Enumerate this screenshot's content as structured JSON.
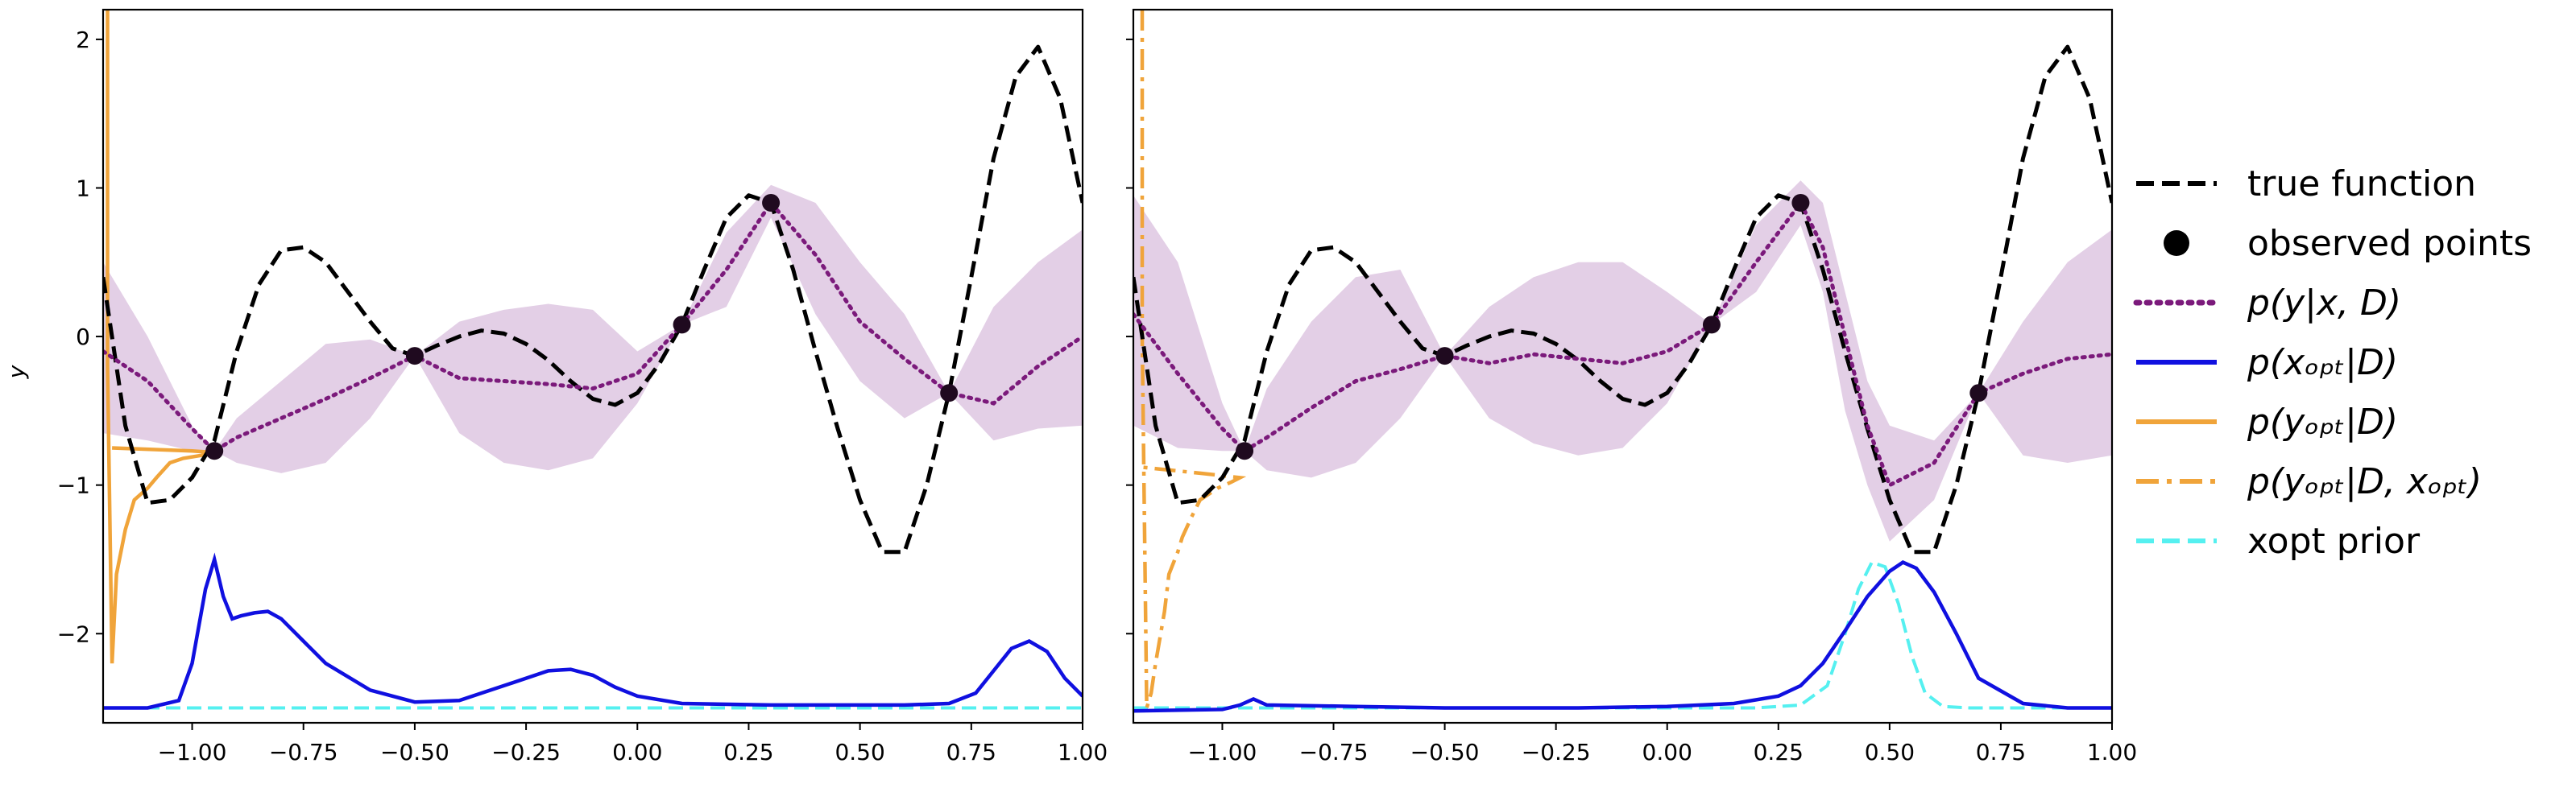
{
  "figure": {
    "ylabel": "y",
    "xticks": [
      "−1.00",
      "−0.75",
      "−0.50",
      "−0.25",
      "0.00",
      "0.25",
      "0.50",
      "0.75",
      "1.00"
    ],
    "yticks": [
      "−2",
      "−1",
      "0",
      "1",
      "2"
    ]
  },
  "legend": {
    "items": [
      {
        "label": "true function",
        "style": "black-dashed"
      },
      {
        "label": "observed points",
        "style": "black-dot"
      },
      {
        "label": "p(y|x, D)",
        "style": "purple-dotted"
      },
      {
        "label": "p(x_opt|D)",
        "style": "blue-solid"
      },
      {
        "label": "p(y_opt|D)",
        "style": "orange-solid"
      },
      {
        "label": "p(y_opt|D, x_opt)",
        "style": "orange-dashdot"
      },
      {
        "label": "xopt prior",
        "style": "cyan-dashed"
      }
    ]
  },
  "colors": {
    "true_function": "#000000",
    "observed": "#1f0a1f",
    "posterior_mean": "#7b1a7b",
    "posterior_band": "#d9bfdd",
    "x_opt": "#1010e0",
    "y_opt": "#f0a43a",
    "xopt_prior": "#55f0f0"
  },
  "chart_data": [
    {
      "type": "line",
      "panel": "left",
      "xlim": [
        -1.2,
        1.0
      ],
      "ylim": [
        -2.6,
        2.2
      ],
      "grid": false,
      "observed_points": {
        "x": [
          -0.95,
          -0.5,
          0.1,
          0.3,
          0.7
        ],
        "y": [
          -0.77,
          -0.13,
          0.08,
          0.9,
          -0.38
        ]
      },
      "true_function": {
        "x": [
          -1.2,
          -1.15,
          -1.1,
          -1.05,
          -1.0,
          -0.95,
          -0.9,
          -0.85,
          -0.8,
          -0.75,
          -0.7,
          -0.65,
          -0.6,
          -0.55,
          -0.5,
          -0.45,
          -0.4,
          -0.35,
          -0.3,
          -0.25,
          -0.2,
          -0.15,
          -0.1,
          -0.05,
          0.0,
          0.05,
          0.1,
          0.15,
          0.2,
          0.25,
          0.3,
          0.35,
          0.4,
          0.45,
          0.5,
          0.55,
          0.6,
          0.65,
          0.7,
          0.75,
          0.8,
          0.85,
          0.9,
          0.95,
          1.0
        ],
        "y": [
          0.4,
          -0.6,
          -1.12,
          -1.1,
          -0.95,
          -0.7,
          -0.1,
          0.35,
          0.58,
          0.6,
          0.5,
          0.3,
          0.1,
          -0.08,
          -0.13,
          -0.06,
          0.0,
          0.04,
          0.02,
          -0.05,
          -0.16,
          -0.3,
          -0.42,
          -0.46,
          -0.38,
          -0.18,
          0.08,
          0.45,
          0.8,
          0.95,
          0.9,
          0.45,
          -0.1,
          -0.62,
          -1.1,
          -1.45,
          -1.45,
          -1.0,
          -0.38,
          0.4,
          1.2,
          1.75,
          1.95,
          1.6,
          0.9
        ]
      },
      "posterior_mean": {
        "x": [
          -1.2,
          -1.1,
          -1.0,
          -0.95,
          -0.9,
          -0.8,
          -0.7,
          -0.6,
          -0.5,
          -0.4,
          -0.3,
          -0.2,
          -0.1,
          0.0,
          0.1,
          0.2,
          0.3,
          0.4,
          0.5,
          0.6,
          0.7,
          0.8,
          0.9,
          1.0
        ],
        "y": [
          -0.1,
          -0.3,
          -0.62,
          -0.77,
          -0.68,
          -0.55,
          -0.42,
          -0.28,
          -0.13,
          -0.28,
          -0.3,
          -0.32,
          -0.35,
          -0.25,
          0.08,
          0.45,
          0.9,
          0.55,
          0.1,
          -0.15,
          -0.38,
          -0.45,
          -0.2,
          0.0
        ]
      },
      "posterior_upper": [
        0.5,
        0.0,
        -0.6,
        -0.77,
        -0.55,
        -0.3,
        -0.05,
        -0.02,
        -0.13,
        0.1,
        0.18,
        0.22,
        0.18,
        -0.1,
        0.08,
        0.7,
        1.02,
        0.9,
        0.5,
        0.15,
        -0.38,
        0.2,
        0.5,
        0.72
      ],
      "posterior_lower": [
        -0.65,
        -0.7,
        -0.77,
        -0.77,
        -0.85,
        -0.92,
        -0.85,
        -0.55,
        -0.13,
        -0.65,
        -0.85,
        -0.9,
        -0.82,
        -0.45,
        0.08,
        0.2,
        0.8,
        0.15,
        -0.3,
        -0.55,
        -0.38,
        -0.7,
        -0.62,
        -0.6
      ],
      "x_opt_density": {
        "x": [
          -1.2,
          -1.1,
          -1.03,
          -1.0,
          -0.97,
          -0.95,
          -0.93,
          -0.91,
          -0.89,
          -0.86,
          -0.83,
          -0.8,
          -0.75,
          -0.7,
          -0.6,
          -0.5,
          -0.4,
          -0.3,
          -0.2,
          -0.15,
          -0.1,
          -0.05,
          0.0,
          0.1,
          0.3,
          0.5,
          0.6,
          0.7,
          0.76,
          0.8,
          0.84,
          0.88,
          0.92,
          0.96,
          1.0
        ],
        "y": [
          -2.5,
          -2.5,
          -2.45,
          -2.2,
          -1.7,
          -1.5,
          -1.75,
          -1.9,
          -1.88,
          -1.86,
          -1.85,
          -1.9,
          -2.05,
          -2.2,
          -2.38,
          -2.46,
          -2.45,
          -2.35,
          -2.25,
          -2.24,
          -2.28,
          -2.36,
          -2.42,
          -2.47,
          -2.48,
          -2.48,
          -2.48,
          -2.47,
          -2.4,
          -2.25,
          -2.1,
          -2.05,
          -2.12,
          -2.3,
          -2.42
        ]
      },
      "xopt_prior": {
        "x": [
          -1.2,
          1.0
        ],
        "y": [
          -2.5,
          -2.5
        ]
      },
      "y_opt_density": {
        "x": [
          -1.19,
          -1.19,
          -1.19,
          -1.18,
          -1.17,
          -1.15,
          -1.13,
          -1.1,
          -1.08,
          -1.05,
          -1.02,
          -0.98,
          -0.95,
          -1.0,
          -1.18
        ],
        "y": [
          2.2,
          0.6,
          -0.2,
          -2.2,
          -1.6,
          -1.3,
          -1.1,
          -1.02,
          -0.95,
          -0.85,
          -0.82,
          -0.8,
          -0.78,
          -0.77,
          -0.75
        ]
      }
    },
    {
      "type": "line",
      "panel": "right",
      "xlim": [
        -1.2,
        1.0
      ],
      "ylim": [
        -2.6,
        2.2
      ],
      "grid": false,
      "observed_points": {
        "x": [
          -0.95,
          -0.5,
          0.1,
          0.3,
          0.7
        ],
        "y": [
          -0.77,
          -0.13,
          0.08,
          0.9,
          -0.38
        ]
      },
      "true_function": {
        "x": [
          -1.2,
          -1.15,
          -1.1,
          -1.05,
          -1.0,
          -0.95,
          -0.9,
          -0.85,
          -0.8,
          -0.75,
          -0.7,
          -0.65,
          -0.6,
          -0.55,
          -0.5,
          -0.45,
          -0.4,
          -0.35,
          -0.3,
          -0.25,
          -0.2,
          -0.15,
          -0.1,
          -0.05,
          0.0,
          0.05,
          0.1,
          0.15,
          0.2,
          0.25,
          0.3,
          0.35,
          0.4,
          0.45,
          0.5,
          0.55,
          0.6,
          0.65,
          0.7,
          0.75,
          0.8,
          0.85,
          0.9,
          0.95,
          1.0
        ],
        "y": [
          0.4,
          -0.6,
          -1.12,
          -1.1,
          -0.95,
          -0.7,
          -0.1,
          0.35,
          0.58,
          0.6,
          0.5,
          0.3,
          0.1,
          -0.08,
          -0.13,
          -0.06,
          0.0,
          0.04,
          0.02,
          -0.05,
          -0.16,
          -0.3,
          -0.42,
          -0.46,
          -0.38,
          -0.18,
          0.08,
          0.45,
          0.8,
          0.95,
          0.9,
          0.45,
          -0.1,
          -0.62,
          -1.1,
          -1.45,
          -1.45,
          -1.0,
          -0.38,
          0.4,
          1.2,
          1.75,
          1.95,
          1.6,
          0.9
        ]
      },
      "posterior_mean": {
        "x": [
          -1.2,
          -1.1,
          -1.0,
          -0.95,
          -0.9,
          -0.8,
          -0.7,
          -0.6,
          -0.5,
          -0.4,
          -0.3,
          -0.2,
          -0.1,
          0.0,
          0.1,
          0.2,
          0.3,
          0.35,
          0.4,
          0.45,
          0.5,
          0.6,
          0.7,
          0.8,
          0.9,
          1.0
        ],
        "y": [
          0.15,
          -0.25,
          -0.62,
          -0.77,
          -0.68,
          -0.48,
          -0.3,
          -0.22,
          -0.13,
          -0.18,
          -0.12,
          -0.15,
          -0.18,
          -0.1,
          0.08,
          0.5,
          0.9,
          0.6,
          0.0,
          -0.6,
          -1.0,
          -0.85,
          -0.38,
          -0.25,
          -0.15,
          -0.12
        ]
      },
      "posterior_upper": [
        0.95,
        0.5,
        -0.45,
        -0.77,
        -0.35,
        0.1,
        0.4,
        0.45,
        -0.13,
        0.2,
        0.4,
        0.5,
        0.5,
        0.3,
        0.08,
        0.75,
        1.05,
        0.9,
        0.3,
        -0.3,
        -0.6,
        -0.7,
        -0.38,
        0.1,
        0.5,
        0.72
      ],
      "posterior_lower": [
        -0.6,
        -0.75,
        -0.77,
        -0.77,
        -0.9,
        -0.95,
        -0.85,
        -0.55,
        -0.13,
        -0.55,
        -0.72,
        -0.8,
        -0.75,
        -0.45,
        0.08,
        0.3,
        0.75,
        0.3,
        -0.5,
        -1.0,
        -1.38,
        -1.1,
        -0.38,
        -0.8,
        -0.85,
        -0.8
      ],
      "x_opt_density": {
        "x": [
          -1.2,
          -1.0,
          -0.96,
          -0.93,
          -0.9,
          -0.7,
          -0.5,
          -0.2,
          0.0,
          0.15,
          0.25,
          0.3,
          0.35,
          0.4,
          0.45,
          0.5,
          0.53,
          0.56,
          0.6,
          0.65,
          0.7,
          0.8,
          0.9,
          1.0
        ],
        "y": [
          -2.52,
          -2.51,
          -2.48,
          -2.44,
          -2.48,
          -2.49,
          -2.5,
          -2.5,
          -2.49,
          -2.47,
          -2.42,
          -2.35,
          -2.2,
          -1.98,
          -1.75,
          -1.58,
          -1.52,
          -1.56,
          -1.72,
          -2.0,
          -2.3,
          -2.47,
          -2.5,
          -2.5
        ]
      },
      "xopt_prior": {
        "x": [
          -1.2,
          0.2,
          0.3,
          0.36,
          0.4,
          0.43,
          0.46,
          0.49,
          0.52,
          0.55,
          0.58,
          0.62,
          0.68,
          1.0
        ],
        "y": [
          -2.5,
          -2.5,
          -2.48,
          -2.35,
          -2.0,
          -1.7,
          -1.52,
          -1.55,
          -1.8,
          -2.15,
          -2.4,
          -2.49,
          -2.5,
          -2.5
        ]
      },
      "y_opt_density": {
        "x": [
          -1.18,
          -1.18,
          -1.18,
          -1.17,
          -1.16,
          -1.15,
          -1.13,
          -1.12,
          -1.1,
          -1.09,
          -1.07,
          -1.05,
          -1.01,
          -0.98,
          -0.96,
          -1.05,
          -1.18
        ],
        "y": [
          2.2,
          1.0,
          0.0,
          -2.5,
          -2.4,
          -2.2,
          -1.85,
          -1.6,
          -1.45,
          -1.35,
          -1.22,
          -1.1,
          -1.02,
          -0.98,
          -0.95,
          -0.92,
          -0.88
        ]
      }
    }
  ]
}
